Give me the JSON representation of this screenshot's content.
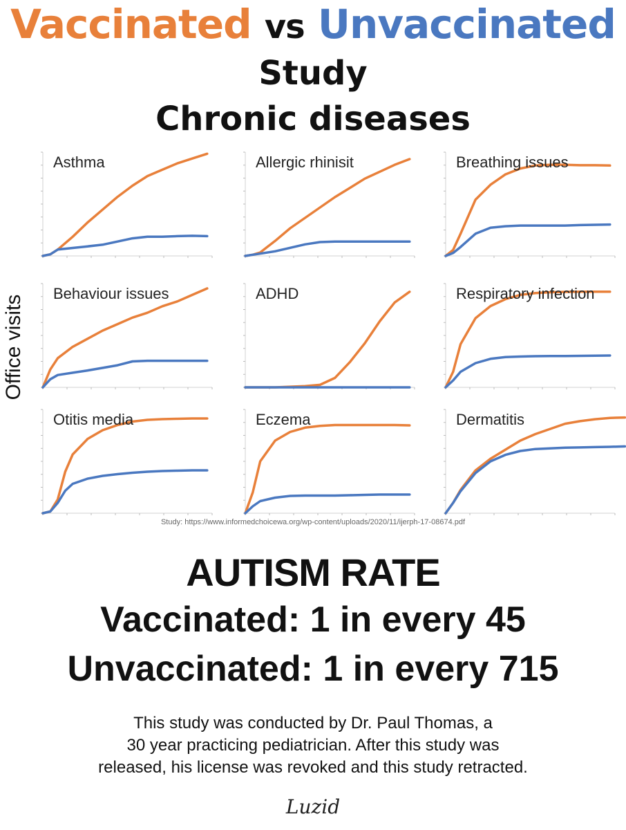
{
  "header": {
    "vaccinated": "Vaccinated",
    "vs": "vs",
    "unvaccinated": "Unvaccinated",
    "line2": "Study",
    "line3": "Chronic diseases"
  },
  "colors": {
    "vaccinated": "#e8803a",
    "unvaccinated": "#4a78c0",
    "axis": "#d0d0d0"
  },
  "y_axis_label": "Office visits",
  "source": "Study: https://www.informedchoicewa.org/wp-content/uploads/2020/11/ijerph-17-08674.pdf",
  "chart_data": [
    {
      "type": "line",
      "title": "Asthma",
      "ylim": [
        0,
        325
      ],
      "series": [
        {
          "name": "Vaccinated",
          "x": [
            0,
            150,
            300,
            600,
            900,
            1200,
            1500,
            1800,
            2100,
            2400,
            2700,
            3000,
            3300
          ],
          "values": [
            0,
            5,
            20,
            60,
            105,
            145,
            185,
            220,
            250,
            270,
            290,
            305,
            320
          ]
        },
        {
          "name": "Unvaccinated",
          "x": [
            0,
            150,
            300,
            600,
            900,
            1200,
            1500,
            1800,
            2100,
            2400,
            2700,
            3000,
            3300
          ],
          "values": [
            0,
            5,
            20,
            25,
            30,
            35,
            45,
            55,
            60,
            60,
            62,
            63,
            62
          ]
        }
      ]
    },
    {
      "type": "line",
      "title": "Allergic rhinisit",
      "ylim": [
        0,
        450
      ],
      "series": [
        {
          "name": "Vaccinated",
          "x": [
            0,
            150,
            300,
            600,
            900,
            1200,
            1500,
            1800,
            2100,
            2400,
            2700,
            3000,
            3300
          ],
          "values": [
            0,
            5,
            15,
            65,
            120,
            165,
            210,
            255,
            295,
            335,
            365,
            395,
            420
          ]
        },
        {
          "name": "Unvaccinated",
          "x": [
            0,
            150,
            300,
            600,
            900,
            1200,
            1500,
            1800,
            2100,
            2400,
            2700,
            3000,
            3300
          ],
          "values": [
            0,
            5,
            10,
            20,
            35,
            50,
            60,
            62,
            62,
            62,
            62,
            62,
            62
          ]
        }
      ]
    },
    {
      "type": "line",
      "title": "Breathing issues",
      "ylim": [
        0,
        700
      ],
      "series": [
        {
          "name": "Vaccinated",
          "x": [
            0,
            150,
            300,
            600,
            900,
            1200,
            1500,
            1800,
            2100,
            2400,
            2700,
            3000,
            3300
          ],
          "values": [
            0,
            40,
            150,
            380,
            480,
            550,
            590,
            610,
            615,
            615,
            612,
            612,
            610
          ]
        },
        {
          "name": "Unvaccinated",
          "x": [
            0,
            150,
            300,
            600,
            900,
            1200,
            1500,
            1800,
            2100,
            2400,
            2700,
            3000,
            3300
          ],
          "values": [
            0,
            20,
            60,
            150,
            190,
            200,
            205,
            205,
            205,
            205,
            208,
            210,
            212
          ]
        }
      ]
    },
    {
      "type": "line",
      "title": "Behaviour issues",
      "ylim": [
        0,
        320
      ],
      "series": [
        {
          "name": "Vaccinated",
          "x": [
            0,
            150,
            300,
            600,
            900,
            1200,
            1500,
            1800,
            2100,
            2400,
            2700,
            3000,
            3300
          ],
          "values": [
            0,
            55,
            90,
            125,
            150,
            175,
            195,
            215,
            230,
            250,
            265,
            285,
            305
          ]
        },
        {
          "name": "Unvaccinated",
          "x": [
            0,
            150,
            300,
            600,
            900,
            1200,
            1500,
            1800,
            2100,
            2400,
            2700,
            3000,
            3300
          ],
          "values": [
            0,
            25,
            38,
            45,
            52,
            60,
            68,
            80,
            82,
            82,
            82,
            82,
            82
          ]
        }
      ]
    },
    {
      "type": "line",
      "title": "ADHD",
      "ylim": [
        0,
        165
      ],
      "series": [
        {
          "name": "Vaccinated",
          "x": [
            0,
            300,
            600,
            900,
            1200,
            1500,
            1800,
            2100,
            2400,
            2700,
            3000,
            3300
          ],
          "values": [
            0,
            0,
            0,
            1,
            2,
            4,
            15,
            40,
            70,
            105,
            135,
            152
          ]
        },
        {
          "name": "Unvaccinated",
          "x": [
            0,
            300,
            600,
            900,
            1200,
            1500,
            1800,
            2100,
            2400,
            2700,
            3000,
            3300
          ],
          "values": [
            0,
            0,
            0,
            0,
            0,
            0,
            0,
            0,
            0,
            0,
            0,
            0
          ]
        }
      ]
    },
    {
      "type": "line",
      "title": "Respiratory infection",
      "ylim": [
        0,
        6000
      ],
      "series": [
        {
          "name": "Vaccinated",
          "x": [
            0,
            150,
            300,
            600,
            900,
            1200,
            1500,
            1800,
            2100,
            2400,
            2700,
            3000,
            3300
          ],
          "values": [
            0,
            900,
            2500,
            4000,
            4700,
            5100,
            5350,
            5450,
            5500,
            5520,
            5530,
            5530,
            5530
          ]
        },
        {
          "name": "Unvaccinated",
          "x": [
            0,
            150,
            300,
            600,
            900,
            1200,
            1500,
            1800,
            2100,
            2400,
            2700,
            3000,
            3300
          ],
          "values": [
            0,
            400,
            900,
            1400,
            1650,
            1750,
            1780,
            1800,
            1810,
            1810,
            1820,
            1830,
            1840
          ]
        }
      ]
    },
    {
      "type": "line",
      "title": "Otitis media",
      "ylim": [
        0,
        3000
      ],
      "series": [
        {
          "name": "Vaccinated",
          "x": [
            0,
            150,
            300,
            450,
            600,
            900,
            1200,
            1500,
            1800,
            2100,
            2400,
            2700,
            3000,
            3300
          ],
          "values": [
            0,
            50,
            400,
            1200,
            1700,
            2150,
            2400,
            2550,
            2650,
            2700,
            2720,
            2730,
            2740,
            2740
          ]
        },
        {
          "name": "Unvaccinated",
          "x": [
            0,
            150,
            300,
            450,
            600,
            900,
            1200,
            1500,
            1800,
            2100,
            2400,
            2700,
            3000,
            3300
          ],
          "values": [
            0,
            50,
            300,
            650,
            850,
            1000,
            1080,
            1130,
            1170,
            1200,
            1220,
            1230,
            1240,
            1240
          ]
        }
      ]
    },
    {
      "type": "line",
      "title": "Eczema",
      "ylim": [
        0,
        600
      ],
      "series": [
        {
          "name": "Vaccinated",
          "x": [
            0,
            150,
            300,
            600,
            900,
            1200,
            1500,
            1800,
            2100,
            2400,
            2700,
            3000,
            3300
          ],
          "values": [
            0,
            120,
            300,
            420,
            470,
            495,
            505,
            510,
            510,
            510,
            510,
            510,
            508
          ]
        },
        {
          "name": "Unvaccinated",
          "x": [
            0,
            150,
            300,
            600,
            900,
            1200,
            1500,
            1800,
            2100,
            2400,
            2700,
            3000,
            3300
          ],
          "values": [
            0,
            40,
            70,
            90,
            100,
            102,
            102,
            102,
            104,
            106,
            108,
            108,
            108
          ]
        }
      ]
    },
    {
      "type": "line",
      "title": "Dermatitis",
      "ylim": [
        0,
        800
      ],
      "series": [
        {
          "name": "Vaccinated",
          "x": [
            0,
            150,
            300,
            600,
            900,
            1200,
            1500,
            1800,
            2100,
            2400,
            2700,
            3000,
            3300,
            3600
          ],
          "values": [
            0,
            80,
            180,
            330,
            420,
            490,
            560,
            610,
            650,
            690,
            710,
            725,
            735,
            738
          ]
        },
        {
          "name": "Unvaccinated",
          "x": [
            0,
            150,
            300,
            600,
            900,
            1200,
            1500,
            1800,
            2100,
            2400,
            2700,
            3000,
            3300,
            3600
          ],
          "values": [
            0,
            80,
            170,
            310,
            400,
            450,
            480,
            495,
            500,
            505,
            507,
            510,
            512,
            515
          ]
        }
      ]
    }
  ],
  "autism": {
    "title": "AUTISM RATE",
    "vaccinated": "Vaccinated: 1 in every 45",
    "unvaccinated": "Unvaccinated: 1 in every 715"
  },
  "footnote": {
    "line1": "This study was conducted by Dr. Paul Thomas, a",
    "line2": "30 year practicing pediatrician. After this study was",
    "line3": "released, his license was revoked and this study retracted."
  },
  "logo": "Luzid"
}
